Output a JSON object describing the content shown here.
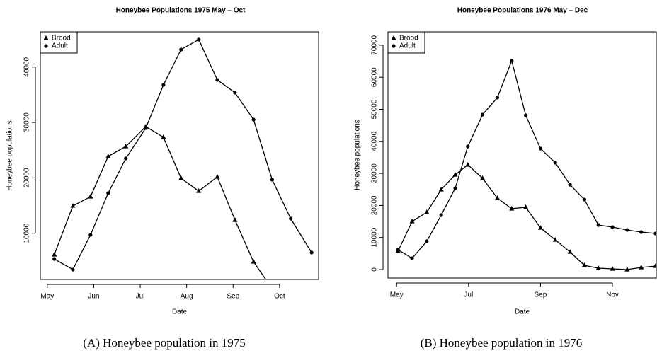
{
  "chart_data": [
    {
      "type": "line",
      "title": "Honeybee Populations 1975 May – Oct",
      "x_label": "Date",
      "y_label": "Honeybee populations",
      "legend": "top-left",
      "xlim": [
        4.85,
        10.84
      ],
      "ylim": [
        1660,
        46360
      ],
      "xticks": [
        {
          "value": 5,
          "label": "May"
        },
        {
          "value": 6,
          "label": "Jun"
        },
        {
          "value": 7,
          "label": "Jul"
        },
        {
          "value": 8,
          "label": "Aug"
        },
        {
          "value": 9,
          "label": "Sep"
        },
        {
          "value": 10,
          "label": "Oct"
        }
      ],
      "yticks": [
        10000,
        20000,
        30000,
        40000
      ],
      "series": [
        {
          "name": "Brood",
          "color": "#000000",
          "marker": "triangle",
          "x": [
            5.15,
            5.55,
            5.93,
            6.31,
            6.69,
            7.12,
            7.5,
            7.88,
            8.26,
            8.66,
            9.04,
            9.44,
            9.84
          ],
          "values": [
            6130,
            14940,
            16600,
            23880,
            25670,
            29250,
            27330,
            19920,
            17620,
            20180,
            12390,
            4850,
            0
          ]
        },
        {
          "name": "Adult",
          "color": "#000000",
          "marker": "circle",
          "x": [
            5.15,
            5.55,
            5.93,
            6.31,
            6.69,
            7.12,
            7.5,
            7.88,
            8.26,
            8.66,
            9.04,
            9.44,
            9.84,
            10.24,
            10.69
          ],
          "values": [
            5360,
            3450,
            9710,
            17240,
            23500,
            28990,
            36780,
            43170,
            44960,
            37680,
            35380,
            30520,
            19670,
            12640,
            6510
          ]
        }
      ]
    },
    {
      "type": "line",
      "title": "Honeybee Populations 1976 May – Dec",
      "x_label": "Date",
      "y_label": "Honeybee populations",
      "legend": "top-left",
      "xlim": [
        4.76,
        12.22
      ],
      "ylim": [
        -2650,
        74170
      ],
      "xticks": [
        {
          "value": 5,
          "label": "May"
        },
        {
          "value": 7,
          "label": "Jul"
        },
        {
          "value": 9,
          "label": "Sep"
        },
        {
          "value": 11,
          "label": "Nov"
        }
      ],
      "yticks": [
        0,
        10000,
        20000,
        30000,
        40000,
        50000,
        60000,
        70000
      ],
      "series": [
        {
          "name": "Brood",
          "color": "#000000",
          "marker": "triangle",
          "x": [
            5.04,
            5.43,
            5.84,
            6.24,
            6.63,
            6.98,
            7.39,
            7.8,
            8.2,
            8.59,
            9,
            9.41,
            9.82,
            10.22,
            10.61,
            11,
            11.41,
            11.8,
            12.2
          ],
          "values": [
            5740,
            15010,
            17880,
            24940,
            29580,
            32670,
            28480,
            22300,
            18980,
            19430,
            13020,
            9270,
            5520,
            1320,
            440,
            220,
            0,
            660,
            1100
          ]
        },
        {
          "name": "Adult",
          "color": "#000000",
          "marker": "circle",
          "x": [
            5.04,
            5.43,
            5.84,
            6.24,
            6.63,
            6.98,
            7.39,
            7.8,
            8.2,
            8.59,
            9,
            9.41,
            9.82,
            10.22,
            10.61,
            11,
            11.41,
            11.8,
            12.2
          ],
          "values": [
            6180,
            3530,
            8830,
            17000,
            25390,
            38410,
            48340,
            53640,
            65120,
            48120,
            37750,
            33330,
            26490,
            21850,
            13910,
            13250,
            12360,
            11700,
            11260
          ]
        }
      ]
    }
  ],
  "captions": [
    "(A) Honeybee population in 1975",
    "(B) Honeybee population in 1976"
  ]
}
